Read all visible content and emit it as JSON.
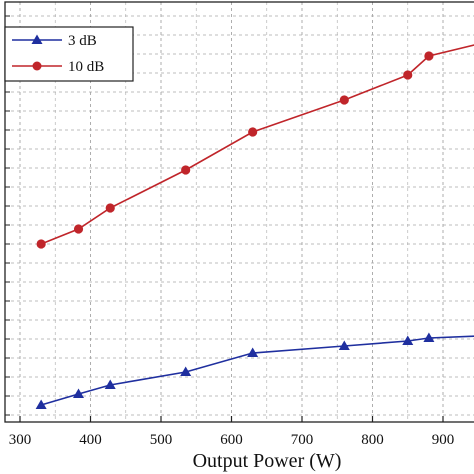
{
  "chart_data": {
    "type": "line",
    "xlabel": "Output Power (W)",
    "ylabel": "",
    "title": "",
    "xlim": [
      290,
      950
    ],
    "xticks": [
      300,
      400,
      500,
      600,
      700,
      800,
      900
    ],
    "grid": true,
    "legend_position": "top-left",
    "series": [
      {
        "name": "3 dB",
        "color": "#1f2f9f",
        "marker": "triangle",
        "x": [
          330,
          383,
          428,
          535,
          630,
          760,
          850,
          880,
          950
        ],
        "y": [
          405,
          394,
          385,
          372,
          353,
          346,
          341,
          338,
          336
        ]
      },
      {
        "name": "10 dB",
        "color": "#c0252a",
        "marker": "circle",
        "x": [
          330,
          383,
          428,
          535,
          630,
          760,
          850,
          880,
          950
        ],
        "y": [
          244,
          229,
          208,
          170,
          132,
          100,
          75,
          56,
          44
        ]
      }
    ]
  }
}
